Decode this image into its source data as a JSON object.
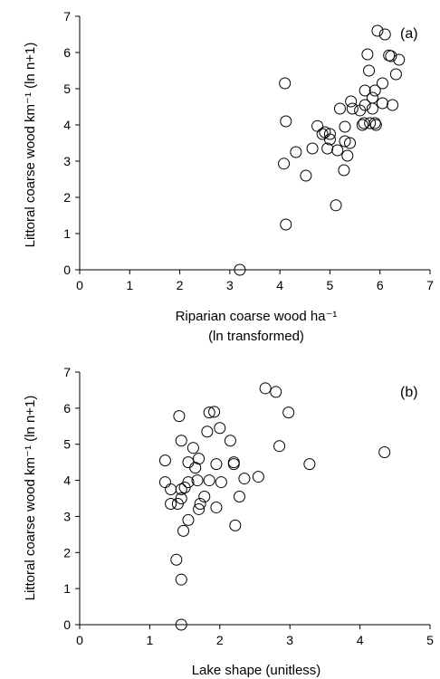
{
  "chart_data": [
    {
      "type": "scatter",
      "panel_label": "(a)",
      "xlabel_line1": "Riparian coarse wood ha⁻¹",
      "xlabel_line2": "(ln transformed)",
      "ylabel": "Littoral coarse wood km⁻¹ (ln n+1)",
      "xlim": [
        0,
        7
      ],
      "ylim": [
        0,
        7
      ],
      "xticks": [
        0,
        1,
        2,
        3,
        4,
        5,
        6,
        7
      ],
      "yticks": [
        0,
        1,
        2,
        3,
        4,
        5,
        6,
        7
      ],
      "grid": false,
      "points": [
        [
          3.2,
          0.0
        ],
        [
          4.12,
          1.25
        ],
        [
          5.12,
          1.78
        ],
        [
          4.08,
          2.93
        ],
        [
          4.52,
          2.6
        ],
        [
          4.1,
          5.15
        ],
        [
          4.12,
          4.1
        ],
        [
          4.32,
          3.25
        ],
        [
          4.65,
          3.35
        ],
        [
          4.75,
          3.97
        ],
        [
          4.85,
          3.75
        ],
        [
          4.9,
          3.8
        ],
        [
          4.95,
          3.35
        ],
        [
          5.0,
          3.6
        ],
        [
          5.0,
          3.75
        ],
        [
          5.15,
          3.3
        ],
        [
          5.2,
          4.45
        ],
        [
          5.28,
          2.75
        ],
        [
          5.3,
          3.55
        ],
        [
          5.35,
          3.15
        ],
        [
          5.3,
          3.95
        ],
        [
          5.4,
          3.5
        ],
        [
          5.42,
          4.65
        ],
        [
          5.45,
          4.45
        ],
        [
          5.6,
          4.4
        ],
        [
          5.65,
          4.0
        ],
        [
          5.68,
          4.05
        ],
        [
          5.7,
          4.55
        ],
        [
          5.7,
          4.95
        ],
        [
          5.75,
          5.95
        ],
        [
          5.78,
          5.5
        ],
        [
          5.8,
          4.05
        ],
        [
          5.85,
          4.75
        ],
        [
          5.85,
          4.45
        ],
        [
          5.9,
          4.95
        ],
        [
          5.9,
          4.05
        ],
        [
          5.92,
          4.0
        ],
        [
          5.95,
          6.6
        ],
        [
          6.05,
          5.15
        ],
        [
          6.05,
          4.6
        ],
        [
          6.1,
          6.5
        ],
        [
          6.18,
          5.92
        ],
        [
          6.22,
          5.9
        ],
        [
          6.25,
          4.55
        ],
        [
          6.32,
          5.4
        ],
        [
          6.38,
          5.8
        ]
      ]
    },
    {
      "type": "scatter",
      "panel_label": "(b)",
      "xlabel_line1": "Lake shape (unitless)",
      "ylabel": "Littoral coarse wood km⁻¹ (ln n+1)",
      "xlim": [
        0,
        5
      ],
      "ylim": [
        0,
        7
      ],
      "xticks": [
        0,
        1,
        2,
        3,
        4,
        5
      ],
      "yticks": [
        0,
        1,
        2,
        3,
        4,
        5,
        6,
        7
      ],
      "grid": false,
      "points": [
        [
          1.45,
          0.0
        ],
        [
          1.45,
          1.25
        ],
        [
          1.38,
          1.8
        ],
        [
          1.48,
          2.6
        ],
        [
          1.55,
          2.9
        ],
        [
          1.22,
          4.55
        ],
        [
          1.22,
          3.95
        ],
        [
          1.3,
          3.75
        ],
        [
          1.3,
          3.35
        ],
        [
          1.4,
          3.35
        ],
        [
          1.45,
          3.5
        ],
        [
          1.5,
          3.8
        ],
        [
          1.45,
          3.75
        ],
        [
          1.45,
          5.1
        ],
        [
          1.42,
          5.78
        ],
        [
          1.55,
          4.5
        ],
        [
          1.55,
          3.95
        ],
        [
          1.62,
          4.9
        ],
        [
          1.65,
          4.35
        ],
        [
          1.68,
          4.0
        ],
        [
          1.7,
          4.6
        ],
        [
          1.7,
          3.2
        ],
        [
          1.72,
          3.35
        ],
        [
          1.78,
          3.55
        ],
        [
          1.82,
          5.35
        ],
        [
          1.85,
          4.0
        ],
        [
          1.85,
          5.88
        ],
        [
          1.92,
          5.9
        ],
        [
          1.95,
          4.45
        ],
        [
          1.95,
          3.25
        ],
        [
          2.0,
          5.45
        ],
        [
          2.02,
          3.95
        ],
        [
          2.15,
          5.1
        ],
        [
          2.2,
          4.45
        ],
        [
          2.2,
          4.5
        ],
        [
          2.22,
          2.75
        ],
        [
          2.28,
          3.55
        ],
        [
          2.35,
          4.05
        ],
        [
          2.55,
          4.1
        ],
        [
          2.65,
          6.55
        ],
        [
          2.8,
          6.45
        ],
        [
          2.85,
          4.95
        ],
        [
          2.98,
          5.88
        ],
        [
          3.28,
          4.45
        ],
        [
          4.35,
          4.78
        ]
      ]
    }
  ]
}
